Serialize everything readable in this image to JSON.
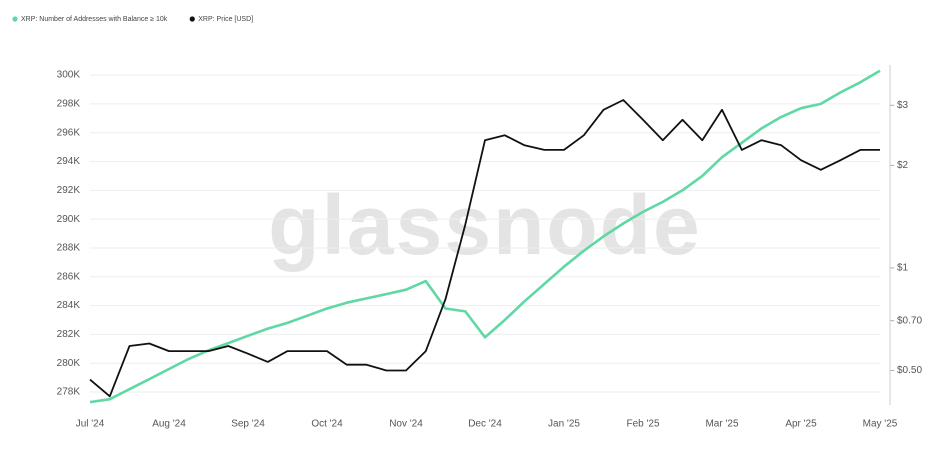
{
  "chart_data": {
    "type": "line",
    "watermark": "glassnode",
    "categories": [
      "Jul '24",
      null,
      null,
      null,
      "Aug '24",
      null,
      null,
      null,
      "Sep '24",
      null,
      null,
      null,
      "Oct '24",
      null,
      null,
      null,
      "Nov '24",
      null,
      null,
      null,
      "Dec '24",
      null,
      null,
      null,
      "Jan '25",
      null,
      null,
      null,
      "Feb '25",
      null,
      null,
      null,
      "Mar '25",
      null,
      null,
      null,
      "Apr '25",
      null,
      null,
      null,
      "May '25"
    ],
    "series": [
      {
        "name": "XRP: Number of Addresses with Balance ≥ 10k",
        "color": "#5fd8a3",
        "values": [
          277300,
          277500,
          278200,
          278900,
          279600,
          280300,
          280900,
          281400,
          281900,
          282400,
          282800,
          283300,
          283800,
          284200,
          284500,
          284800,
          285100,
          285700,
          283800,
          283600,
          281800,
          283000,
          284300,
          285500,
          286700,
          287800,
          288800,
          289700,
          290500,
          291200,
          292000,
          293000,
          294300,
          295300,
          296300,
          297100,
          297700,
          298000,
          298800,
          299500,
          300300
        ]
      },
      {
        "name": "XRP: Price [USD]",
        "color": "#111111",
        "axis": "y2",
        "values": [
          0.47,
          0.42,
          0.59,
          0.6,
          0.57,
          0.57,
          0.57,
          0.59,
          0.56,
          0.53,
          0.57,
          0.57,
          0.57,
          0.52,
          0.52,
          0.5,
          0.5,
          0.57,
          0.81,
          1.34,
          2.37,
          2.45,
          2.29,
          2.22,
          2.22,
          2.45,
          2.91,
          3.11,
          2.72,
          2.37,
          2.72,
          2.37,
          2.91,
          2.22,
          2.37,
          2.29,
          2.07,
          1.94,
          2.07,
          2.22,
          2.22
        ]
      }
    ],
    "ylim": [
      277100,
      300700
    ],
    "yticks": [
      {
        "value": 278000,
        "label": "278K"
      },
      {
        "value": 280000,
        "label": "280K"
      },
      {
        "value": 282000,
        "label": "282K"
      },
      {
        "value": 284000,
        "label": "284K"
      },
      {
        "value": 286000,
        "label": "286K"
      },
      {
        "value": 288000,
        "label": "288K"
      },
      {
        "value": 290000,
        "label": "290K"
      },
      {
        "value": 292000,
        "label": "292K"
      },
      {
        "value": 294000,
        "label": "294K"
      },
      {
        "value": 296000,
        "label": "296K"
      },
      {
        "value": 298000,
        "label": "298K"
      },
      {
        "value": 300000,
        "label": "300K"
      }
    ],
    "y2lim": [
      0.396,
      3.94
    ],
    "y2_log": true,
    "y2ticks": [
      {
        "value": 0.5,
        "label": "$0.50"
      },
      {
        "value": 0.7,
        "label": "$0.70"
      },
      {
        "value": 1,
        "label": "$1"
      },
      {
        "value": 2,
        "label": "$2"
      },
      {
        "value": 3,
        "label": "$3"
      }
    ],
    "grid": true
  }
}
